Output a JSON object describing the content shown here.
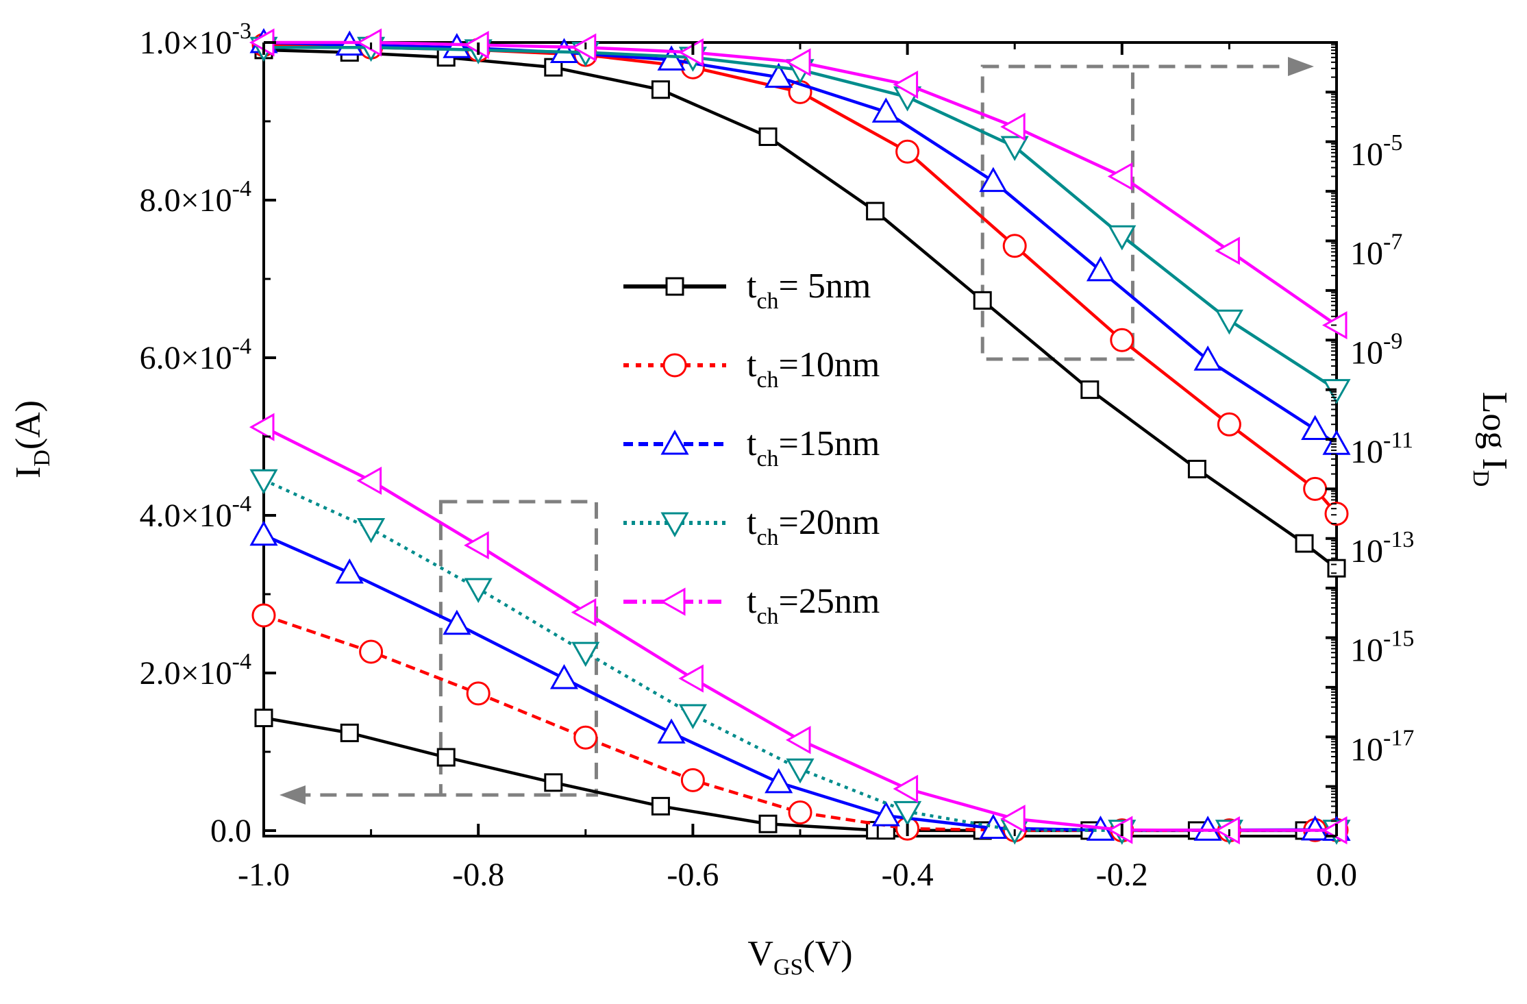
{
  "chart_data": {
    "type": "line",
    "title": "",
    "xlabel": {
      "main": "V",
      "sub": "GS",
      "tail": "(V)"
    },
    "ylabel_left": {
      "main": "I",
      "sub": "D",
      "tail": "(A)"
    },
    "ylabel_right": {
      "main": "Log I",
      "sub": "D"
    },
    "xlim": [
      -1.0,
      0.0
    ],
    "ylim_left": [
      0,
      0.001
    ],
    "ylim_right_exp": [
      -19,
      -3
    ],
    "x_ticks": [
      {
        "value": -1.0,
        "label": "-1.0"
      },
      {
        "value": -0.8,
        "label": "-0.8"
      },
      {
        "value": -0.6,
        "label": "-0.6"
      },
      {
        "value": -0.4,
        "label": "-0.4"
      },
      {
        "value": -0.2,
        "label": "-0.2"
      },
      {
        "value": 0.0,
        "label": "0.0"
      }
    ],
    "y_left_ticks": [
      {
        "value": 0.0,
        "label": "0.0"
      },
      {
        "value": 0.0002,
        "mant": "2.0×10",
        "exp": "-4"
      },
      {
        "value": 0.0004,
        "mant": "4.0×10",
        "exp": "-4"
      },
      {
        "value": 0.0006,
        "mant": "6.0×10",
        "exp": "-4"
      },
      {
        "value": 0.0008,
        "mant": "8.0×10",
        "exp": "-4"
      },
      {
        "value": 0.001,
        "mant": "1.0×10",
        "exp": "-3"
      }
    ],
    "y_right_ticks": [
      {
        "exp_value": -5,
        "base": "10",
        "exp": "-5"
      },
      {
        "exp_value": -7,
        "base": "10",
        "exp": "-7"
      },
      {
        "exp_value": -9,
        "base": "10",
        "exp": "-9"
      },
      {
        "exp_value": -11,
        "base": "10",
        "exp": "-11"
      },
      {
        "exp_value": -13,
        "base": "10",
        "exp": "-13"
      },
      {
        "exp_value": -15,
        "base": "10",
        "exp": "-15"
      },
      {
        "exp_value": -17,
        "base": "10",
        "exp": "-17"
      }
    ],
    "legend": {
      "position": "center"
    },
    "series": [
      {
        "name": "t_ch = 5nm",
        "legend_main": "t",
        "legend_sub": "ch",
        "legend_tail": "= 5nm",
        "color": "#000000",
        "marker": "square",
        "linear_x": [
          -1.0,
          -0.92,
          -0.83,
          -0.73,
          -0.63,
          -0.53,
          -0.43,
          -0.42,
          -0.33,
          -0.23,
          -0.13,
          -0.03,
          0.0
        ],
        "linear_y": [
          0.000143,
          0.000124,
          9.3e-05,
          6.1e-05,
          3.1e-05,
          8.5e-06,
          5e-07,
          3e-07,
          1e-07,
          1e-07,
          1e-07,
          1e-07,
          1e-07
        ],
        "log_x": [
          -1.0,
          -0.92,
          -0.83,
          -0.73,
          -0.63,
          -0.53,
          -0.43,
          -0.33,
          -0.23,
          -0.13,
          -0.03,
          0.0
        ],
        "log_exp": [
          -3.15,
          -3.2,
          -3.3,
          -3.5,
          -3.95,
          -4.9,
          -6.4,
          -8.2,
          -10.0,
          -11.6,
          -13.1,
          -13.6
        ]
      },
      {
        "name": "t_ch = 10nm",
        "legend_main": "t",
        "legend_sub": "ch",
        "legend_tail": "=10nm",
        "color": "#ff0000",
        "marker": "circle",
        "dashed": true,
        "linear_x": [
          -1.0,
          -0.9,
          -0.8,
          -0.7,
          -0.6,
          -0.5,
          -0.4,
          -0.3,
          -0.2,
          -0.1,
          -0.02,
          0.0
        ],
        "linear_y": [
          0.000273,
          0.000227,
          0.000174,
          0.000118,
          6.4e-05,
          2.3e-05,
          2.5e-06,
          4e-07,
          3e-07,
          3e-07,
          7e-07,
          8e-07
        ],
        "log_x": [
          -1.0,
          -0.9,
          -0.8,
          -0.7,
          -0.6,
          -0.5,
          -0.4,
          -0.3,
          -0.2,
          -0.1,
          -0.02,
          0.0
        ],
        "log_exp": [
          -3.05,
          -3.1,
          -3.15,
          -3.25,
          -3.5,
          -4.0,
          -5.2,
          -7.1,
          -9.0,
          -10.7,
          -12.0,
          -12.5
        ]
      },
      {
        "name": "t_ch = 15nm",
        "legend_main": "t",
        "legend_sub": "ch",
        "legend_tail": "=15nm",
        "color": "#0000ff",
        "marker": "triangle-up",
        "dashed": false,
        "linear_x": [
          -1.0,
          -0.92,
          -0.82,
          -0.72,
          -0.62,
          -0.52,
          -0.42,
          -0.32,
          -0.22,
          -0.12,
          -0.02,
          0.0
        ],
        "linear_y": [
          0.000375,
          0.000327,
          0.000262,
          0.000193,
          0.000124,
          6.1e-05,
          1.9e-05,
          3e-06,
          7e-07,
          6e-07,
          1e-06,
          5e-07
        ],
        "log_x": [
          -1.0,
          -0.92,
          -0.82,
          -0.72,
          -0.62,
          -0.52,
          -0.42,
          -0.32,
          -0.22,
          -0.12,
          -0.02,
          0.0
        ],
        "log_exp": [
          -3.0,
          -3.05,
          -3.1,
          -3.2,
          -3.35,
          -3.7,
          -4.4,
          -5.8,
          -7.6,
          -9.4,
          -10.8,
          -11.1
        ]
      },
      {
        "name": "t_ch = 20nm",
        "legend_main": "t",
        "legend_sub": "ch",
        "legend_tail": "=20nm",
        "color": "#008c8c",
        "marker": "triangle-down",
        "dotted": true,
        "linear_x": [
          -1.0,
          -0.9,
          -0.8,
          -0.7,
          -0.6,
          -0.5,
          -0.4,
          -0.3,
          -0.2,
          -0.1,
          0.0
        ],
        "linear_y": [
          0.000445,
          0.000383,
          0.000307,
          0.000226,
          0.000147,
          7.8e-05,
          2.4e-05,
          5e-07,
          3e-07,
          3e-07,
          3e-07
        ],
        "log_x": [
          -1.0,
          -0.9,
          -0.8,
          -0.7,
          -0.6,
          -0.5,
          -0.4,
          -0.3,
          -0.2,
          -0.1,
          0.0
        ],
        "log_exp": [
          -3.1,
          -3.1,
          -3.15,
          -3.2,
          -3.3,
          -3.55,
          -4.1,
          -5.1,
          -6.9,
          -8.6,
          -10.0
        ]
      },
      {
        "name": "t_ch = 25nm",
        "legend_main": "t",
        "legend_sub": "ch",
        "legend_tail": "=25nm",
        "color": "#ff00ff",
        "marker": "triangle-left",
        "dashdot": true,
        "linear_x": [
          -1.0,
          -0.9,
          -0.8,
          -0.7,
          -0.6,
          -0.5,
          -0.4,
          -0.3,
          -0.2,
          -0.1,
          0.0
        ],
        "linear_y": [
          0.000512,
          0.000444,
          0.000362,
          0.000277,
          0.000193,
          0.000115,
          5.3e-05,
          1.5e-05,
          8e-07,
          4e-07,
          4e-07
        ],
        "log_x": [
          -1.0,
          -0.9,
          -0.8,
          -0.7,
          -0.6,
          -0.5,
          -0.4,
          -0.3,
          -0.2,
          -0.1,
          0.0
        ],
        "log_exp": [
          -3.0,
          -3.0,
          -3.05,
          -3.1,
          -3.2,
          -3.4,
          -3.85,
          -4.7,
          -5.7,
          -7.2,
          -8.7
        ]
      }
    ],
    "annotations": [
      {
        "type": "dashed-box-arrow",
        "direction": "left",
        "axis": "left"
      },
      {
        "type": "dashed-box-arrow",
        "direction": "right",
        "axis": "right"
      }
    ]
  }
}
